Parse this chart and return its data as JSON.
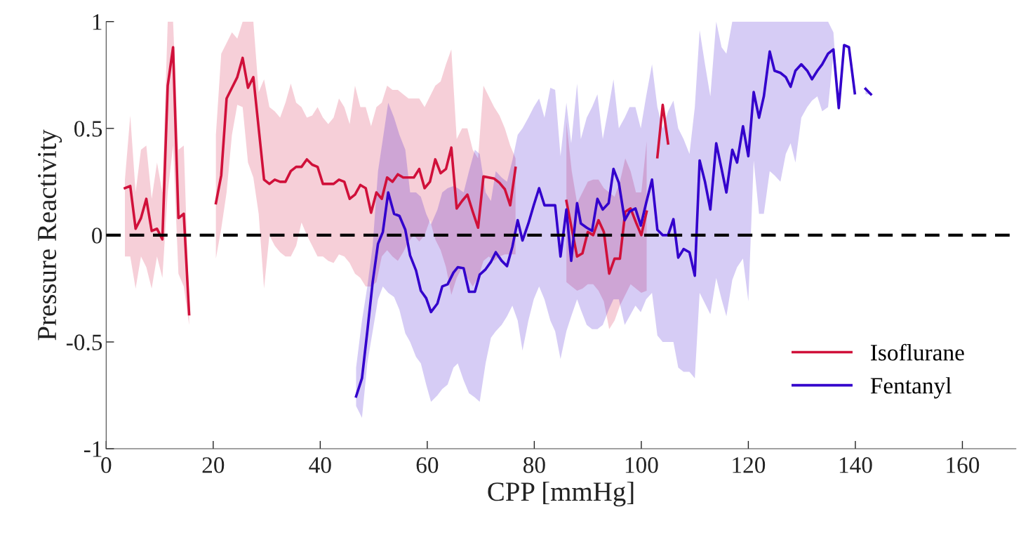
{
  "chart_data": {
    "type": "line",
    "xlabel": "CPP [mmHg]",
    "ylabel": "Pressure Reactivity",
    "xlim": [
      0,
      170
    ],
    "xticks": [
      0,
      20,
      40,
      60,
      80,
      100,
      120,
      140,
      160
    ],
    "ylim": [
      -1,
      1
    ],
    "yticks": [
      -1,
      -0.5,
      0,
      0.5,
      1
    ],
    "grid": false,
    "legend": "bottom right",
    "ref_lines": [
      {
        "axis": "y",
        "value": 0,
        "color": "#000000",
        "line_style": "dashed"
      }
    ],
    "series": [
      {
        "name": "Isoflurane",
        "color": "#d0103a",
        "x": [
          3.5,
          4.5,
          5.5,
          6.5,
          7.5,
          8.5,
          9.5,
          10.5,
          11.5,
          12.5,
          13.5,
          14.5,
          15.5,
          18,
          20.5,
          21.5,
          22.5,
          23.5,
          24.5,
          25.5,
          26.5,
          27.5,
          28.5,
          29.5,
          30.5,
          31.5,
          32.5,
          33.5,
          34.5,
          35.5,
          36.5,
          37.5,
          38.5,
          39.5,
          40.5,
          41.5,
          42.5,
          43.5,
          44.5,
          45.5,
          46.5,
          47.5,
          48.5,
          49.5,
          50.5,
          51.5,
          52.5,
          53.5,
          54.5,
          55.5,
          56.5,
          57.5,
          58.5,
          59.5,
          60.5,
          61.5,
          62.5,
          63.5,
          64.5,
          65.5,
          66.5,
          67.5,
          68.5,
          69.5,
          70.5,
          71.5,
          72.5,
          73.5,
          74.5,
          75.5,
          76.5,
          81,
          86,
          87,
          88,
          89,
          90,
          91,
          92,
          93,
          94,
          95,
          96,
          97,
          98,
          99,
          100,
          101,
          102,
          103,
          104,
          105
        ],
        "values": [
          0.22,
          0.23,
          0.03,
          0.08,
          0.17,
          0.02,
          0.03,
          -0.02,
          0.7,
          0.88,
          0.08,
          0.1,
          -0.37,
          null,
          0.15,
          0.28,
          0.64,
          0.69,
          0.74,
          0.83,
          0.69,
          0.74,
          0.5,
          0.26,
          0.24,
          0.26,
          0.25,
          0.25,
          0.3,
          0.32,
          0.32,
          0.355,
          0.33,
          0.32,
          0.24,
          0.24,
          0.24,
          0.26,
          0.25,
          0.17,
          0.19,
          0.235,
          0.22,
          0.105,
          0.2,
          0.17,
          0.27,
          0.25,
          0.285,
          0.27,
          0.27,
          0.27,
          0.31,
          0.22,
          0.25,
          0.355,
          0.29,
          0.31,
          0.41,
          0.125,
          0.16,
          0.19,
          0.11,
          0.035,
          0.275,
          0.27,
          0.265,
          0.245,
          0.215,
          0.14,
          0.315,
          null,
          0.16,
          0.03,
          -0.1,
          -0.085,
          0.015,
          0.0,
          0.07,
          0.015,
          -0.18,
          -0.11,
          -0.11,
          0.11,
          0.125,
          0.06,
          0.0,
          0.11,
          null,
          0.365,
          0.61,
          0.43
        ],
        "lower": [
          -0.1,
          -0.1,
          -0.25,
          -0.1,
          -0.15,
          -0.25,
          -0.1,
          -0.2,
          0.2,
          0.42,
          -0.18,
          -0.24,
          -0.42,
          null,
          -0.11,
          0.03,
          0.2,
          0.47,
          0.61,
          0.6,
          0.34,
          0.27,
          0.1,
          -0.25,
          0.0,
          -0.05,
          -0.08,
          -0.1,
          -0.1,
          -0.05,
          0.06,
          0.0,
          -0.05,
          -0.1,
          -0.1,
          -0.12,
          -0.13,
          -0.09,
          -0.1,
          -0.13,
          -0.18,
          -0.2,
          -0.24,
          -0.24,
          -0.22,
          -0.1,
          -0.07,
          -0.1,
          -0.12,
          -0.08,
          -0.03,
          0.0,
          -0.03,
          0.0,
          0.07,
          -0.02,
          -0.07,
          -0.15,
          -0.28,
          -0.2,
          -0.15,
          -0.2,
          -0.24,
          -0.2,
          -0.12,
          -0.1,
          -0.12,
          -0.1,
          -0.09,
          -0.09,
          -0.09,
          null,
          -0.22,
          -0.24,
          -0.26,
          -0.25,
          -0.23,
          -0.23,
          -0.26,
          -0.31,
          -0.44,
          -0.4,
          -0.33,
          -0.28,
          -0.23,
          -0.25,
          -0.27,
          -0.26,
          null,
          null,
          null,
          null
        ],
        "upper": [
          0.26,
          0.56,
          0.2,
          0.4,
          0.42,
          0.17,
          0.34,
          0.2,
          1.0,
          1.0,
          0.4,
          0.42,
          -0.33,
          null,
          0.47,
          0.85,
          0.9,
          0.95,
          0.92,
          1.0,
          1.0,
          1.0,
          0.67,
          0.73,
          0.6,
          0.58,
          0.55,
          0.62,
          0.71,
          0.62,
          0.6,
          0.55,
          0.56,
          0.6,
          0.55,
          0.52,
          0.55,
          0.64,
          0.6,
          0.52,
          0.7,
          0.6,
          0.6,
          0.51,
          0.6,
          0.62,
          0.7,
          0.68,
          0.68,
          0.66,
          0.64,
          0.64,
          0.64,
          0.6,
          0.65,
          0.7,
          0.72,
          0.8,
          0.87,
          0.45,
          0.5,
          0.5,
          0.4,
          0.36,
          0.7,
          0.65,
          0.6,
          0.56,
          0.5,
          0.42,
          0.36,
          null,
          0.53,
          0.3,
          0.15,
          0.2,
          0.25,
          0.26,
          0.26,
          0.22,
          0.2,
          0.18,
          0.25,
          0.36,
          0.3,
          0.2,
          0.2,
          0.44,
          null,
          null,
          null,
          null
        ]
      },
      {
        "name": "Fentanyl",
        "color": "#3300cc",
        "x": [
          46.7,
          47.8,
          48.8,
          49.8,
          50.8,
          51.7,
          52.7,
          53.8,
          54.8,
          55.9,
          56.8,
          57.9,
          58.8,
          59.8,
          60.7,
          61.9,
          62.8,
          63.8,
          64.9,
          65.7,
          66.8,
          67.8,
          68.9,
          69.8,
          70.9,
          71.9,
          72.8,
          73.9,
          74.9,
          75.9,
          76.9,
          77.8,
          78.9,
          79.9,
          80.9,
          81.9,
          83,
          83.9,
          84.9,
          86,
          86.9,
          88,
          88.7,
          89.8,
          90.8,
          91.8,
          92.8,
          93.9,
          94.8,
          95.8,
          96.9,
          97.8,
          98.9,
          99.9,
          100.9,
          102,
          103,
          104,
          105,
          106,
          106.9,
          107.9,
          109,
          110,
          110.9,
          111.9,
          112.9,
          114,
          115,
          115.9,
          117,
          117.9,
          119,
          120,
          121,
          122,
          122.9,
          124,
          124.9,
          126,
          127,
          127.9,
          128.8,
          129.9,
          131,
          131.9,
          132.9,
          133.8,
          134.9,
          135.9,
          136.9,
          137.9,
          138.8,
          139.9,
          140.9,
          141.9,
          142.9
        ],
        "values": [
          -0.755,
          -0.67,
          -0.45,
          -0.22,
          -0.04,
          0.015,
          0.2,
          0.1,
          0.09,
          0.025,
          -0.095,
          -0.165,
          -0.26,
          -0.295,
          -0.36,
          -0.32,
          -0.24,
          -0.23,
          -0.175,
          -0.15,
          -0.155,
          -0.265,
          -0.265,
          -0.185,
          -0.16,
          -0.125,
          -0.08,
          -0.12,
          -0.145,
          -0.055,
          0.07,
          -0.025,
          0.055,
          0.14,
          0.22,
          0.14,
          0.14,
          0.14,
          -0.1,
          0.12,
          -0.12,
          0.15,
          0.055,
          0.035,
          0.02,
          0.17,
          0.12,
          0.15,
          0.31,
          0.245,
          0.07,
          0.11,
          0.125,
          0.045,
          0.15,
          0.26,
          0.025,
          0.0,
          0.0,
          0.075,
          -0.105,
          -0.065,
          -0.08,
          -0.19,
          0.35,
          0.25,
          0.12,
          0.43,
          0.31,
          0.2,
          0.4,
          0.34,
          0.51,
          0.37,
          0.67,
          0.55,
          0.65,
          0.86,
          0.77,
          0.76,
          0.74,
          0.695,
          0.77,
          0.8,
          0.77,
          0.73,
          0.77,
          0.8,
          0.85,
          0.87,
          0.595,
          0.89,
          0.88,
          0.665,
          null,
          0.685,
          0.66
        ],
        "lower": [
          -0.8,
          -0.855,
          -0.6,
          -0.45,
          -0.3,
          -0.24,
          -0.27,
          -0.29,
          -0.35,
          -0.46,
          -0.5,
          -0.57,
          -0.6,
          -0.7,
          -0.78,
          -0.75,
          -0.72,
          -0.7,
          -0.62,
          -0.6,
          -0.68,
          -0.74,
          -0.76,
          -0.78,
          -0.6,
          -0.48,
          -0.45,
          -0.42,
          -0.38,
          -0.33,
          -0.4,
          -0.54,
          -0.4,
          -0.3,
          -0.24,
          -0.3,
          -0.4,
          -0.45,
          -0.58,
          -0.45,
          -0.38,
          -0.3,
          -0.35,
          -0.42,
          -0.44,
          -0.44,
          -0.42,
          -0.35,
          -0.3,
          -0.3,
          -0.42,
          -0.38,
          -0.33,
          -0.36,
          -0.3,
          -0.27,
          -0.47,
          -0.5,
          -0.5,
          -0.5,
          -0.62,
          -0.64,
          -0.64,
          -0.67,
          -0.27,
          -0.32,
          -0.37,
          -0.2,
          -0.3,
          -0.38,
          -0.21,
          -0.15,
          -0.11,
          -0.31,
          0.35,
          0.1,
          0.1,
          0.3,
          0.28,
          0.25,
          0.38,
          0.43,
          0.34,
          0.55,
          0.6,
          0.63,
          0.65,
          0.58,
          0.6,
          0.85,
          0.595,
          0.89,
          0.88,
          0.665,
          null,
          0.66,
          0.66
        ],
        "upper": [
          -0.62,
          -0.4,
          -0.24,
          -0.05,
          0.3,
          0.45,
          0.62,
          0.55,
          0.47,
          0.4,
          0.2,
          0.2,
          0.18,
          0.1,
          0.05,
          0.12,
          0.2,
          0.22,
          0.23,
          0.22,
          0.2,
          0.3,
          0.4,
          0.38,
          0.2,
          0.16,
          0.3,
          0.27,
          0.25,
          0.35,
          0.47,
          0.5,
          0.55,
          0.6,
          0.64,
          0.55,
          0.69,
          0.68,
          0.37,
          0.62,
          0.43,
          0.71,
          0.45,
          0.55,
          0.6,
          0.66,
          0.45,
          0.6,
          0.73,
          0.5,
          0.55,
          0.6,
          0.6,
          0.5,
          0.65,
          0.8,
          0.6,
          0.5,
          0.58,
          0.63,
          0.5,
          0.45,
          0.38,
          0.6,
          0.96,
          0.8,
          0.65,
          1.0,
          0.88,
          0.85,
          1.0,
          1.0,
          1.0,
          1.0,
          1.0,
          1.0,
          1.0,
          1.0,
          1.0,
          1.0,
          1.0,
          1.0,
          1.0,
          1.0,
          1.0,
          1.0,
          1.0,
          1.0,
          1.0,
          0.95,
          0.595,
          0.89,
          0.88,
          0.665,
          null,
          0.7,
          0.66
        ]
      }
    ]
  }
}
